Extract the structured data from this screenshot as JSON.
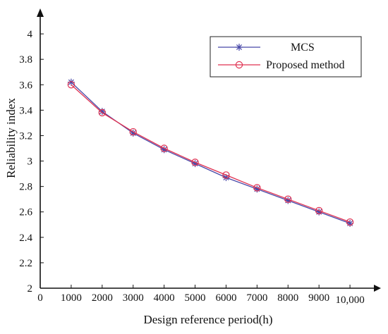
{
  "chart_data": {
    "type": "line",
    "xlabel": "Design reference period(h)",
    "ylabel": "Reliability index",
    "xlim": [
      0,
      11000
    ],
    "ylim": [
      2,
      4.2
    ],
    "x_ticks": [
      0,
      1000,
      2000,
      3000,
      4000,
      5000,
      6000,
      7000,
      8000,
      9000,
      10000
    ],
    "x_tick_labels": [
      "0",
      "1000",
      "2000",
      "3000",
      "4000",
      "5000",
      "6000",
      "7000",
      "8000",
      "9000",
      "10,000"
    ],
    "y_ticks": [
      2,
      2.2,
      2.4,
      2.6,
      2.8,
      3,
      3.2,
      3.4,
      3.6,
      3.8,
      4
    ],
    "y_tick_labels": [
      "2",
      "2.2",
      "2.4",
      "2.6",
      "2.8",
      "3",
      "3.2",
      "3.4",
      "3.6",
      "3.8",
      "4"
    ],
    "grid": false,
    "legend_position": "top-right",
    "x": [
      1000,
      2000,
      3000,
      4000,
      5000,
      6000,
      7000,
      8000,
      9000,
      10000
    ],
    "series": [
      {
        "name": "MCS",
        "marker": "asterisk",
        "color": "#4848a8",
        "values": [
          3.62,
          3.39,
          3.22,
          3.09,
          2.98,
          2.87,
          2.78,
          2.69,
          2.6,
          2.51
        ]
      },
      {
        "name": "Proposed method",
        "marker": "circle",
        "color": "#e03050",
        "values": [
          3.6,
          3.38,
          3.23,
          3.1,
          2.99,
          2.89,
          2.79,
          2.7,
          2.61,
          2.52
        ]
      }
    ]
  }
}
